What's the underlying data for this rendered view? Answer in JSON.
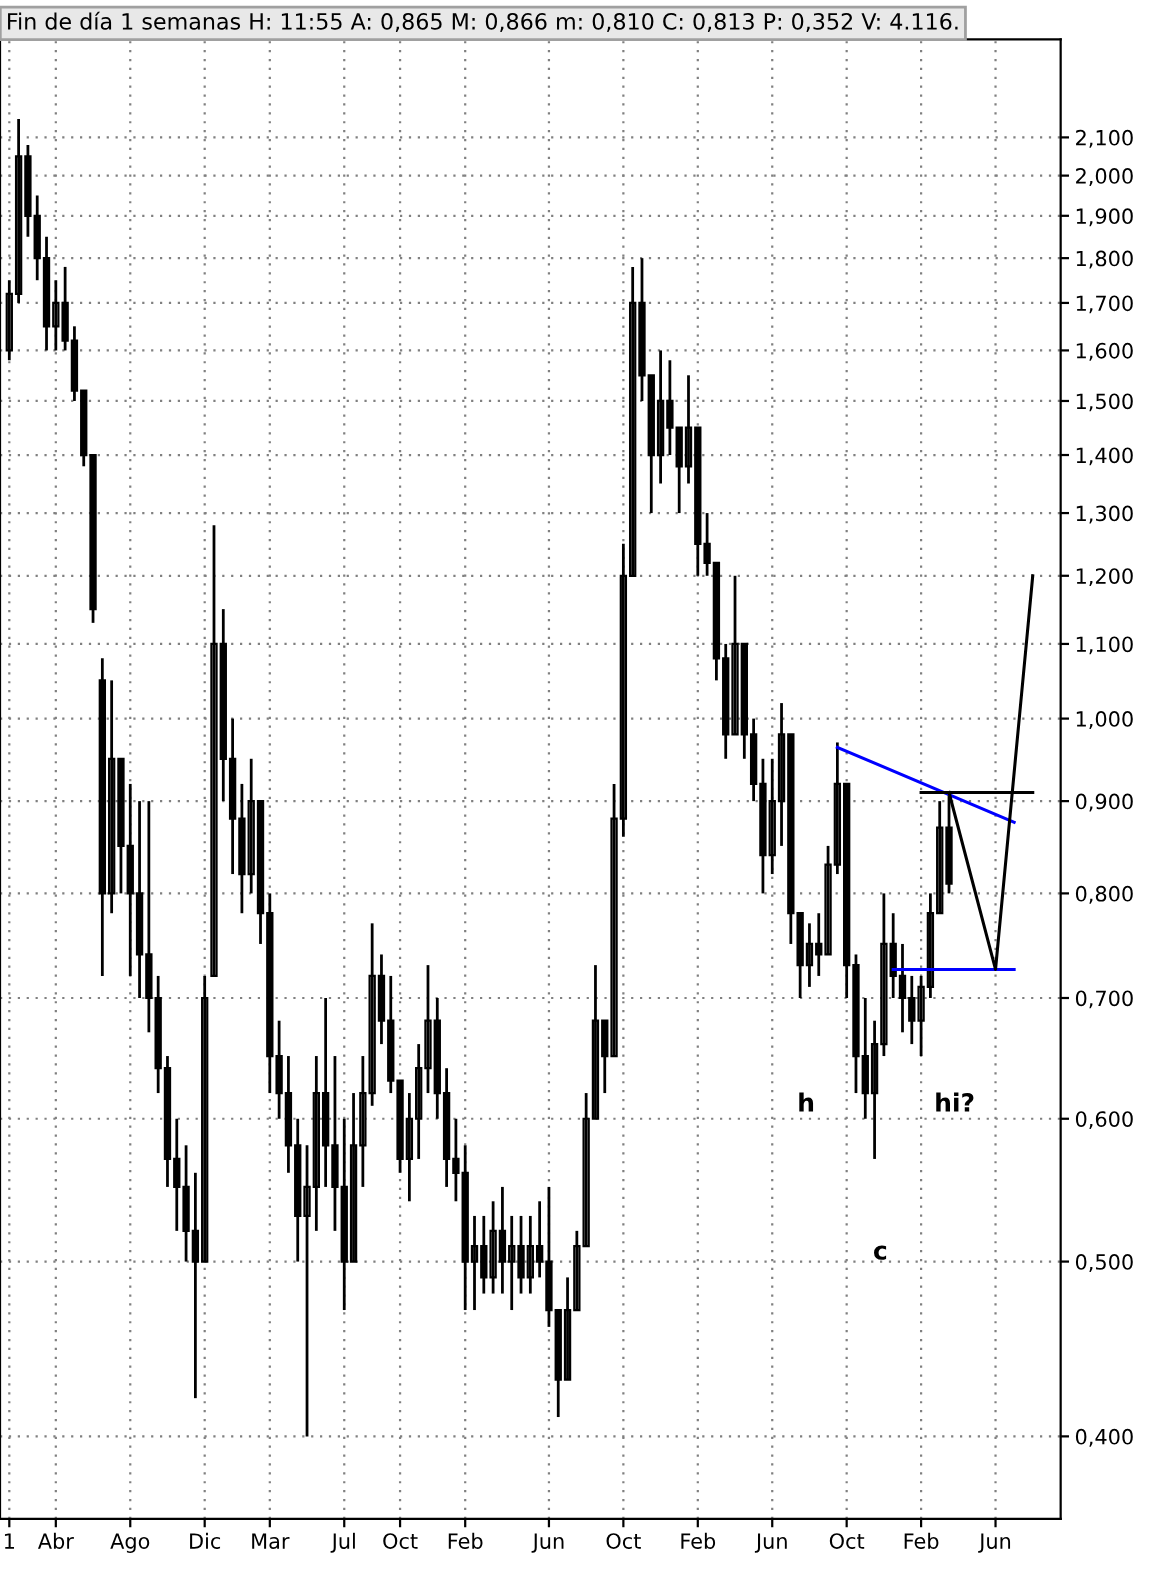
{
  "chart_data": {
    "type": "candlestick",
    "title": "Fin de día 1 semanas H: 11:55 A: 0,865 M: 0,866 m: 0,810 C: 0,813 P: 0,352 V: 4.116.",
    "color": "#000000",
    "categories": [
      "1",
      null,
      null,
      null,
      null,
      "Abr",
      null,
      null,
      null,
      null,
      null,
      null,
      null,
      "Ago",
      null,
      null,
      null,
      null,
      null,
      null,
      null,
      "Dic",
      null,
      null,
      null,
      null,
      null,
      null,
      "Mar",
      null,
      null,
      null,
      null,
      null,
      null,
      null,
      "Jul",
      null,
      null,
      null,
      null,
      null,
      "Oct",
      null,
      null,
      null,
      null,
      null,
      null,
      "Feb",
      null,
      null,
      null,
      null,
      null,
      null,
      null,
      null,
      "Jun",
      null,
      null,
      null,
      null,
      null,
      null,
      null,
      "Oct",
      null,
      null,
      null,
      null,
      null,
      null,
      null,
      "Feb",
      null,
      null,
      null,
      null,
      null,
      null,
      null,
      "Jun",
      null,
      null,
      null,
      null,
      null,
      null,
      null,
      "Oct",
      null,
      null,
      null,
      null,
      null,
      null,
      null,
      "Feb",
      null,
      null,
      null,
      null,
      null,
      null,
      null,
      "Jun",
      null,
      null,
      null,
      null,
      null
    ],
    "ohlc": [
      [
        1.6,
        1.75,
        1.58,
        1.72
      ],
      [
        1.72,
        2.15,
        1.7,
        2.05
      ],
      [
        2.05,
        2.08,
        1.85,
        1.9
      ],
      [
        1.9,
        1.95,
        1.75,
        1.8
      ],
      [
        1.8,
        1.85,
        1.6,
        1.65
      ],
      [
        1.65,
        1.75,
        1.6,
        1.7
      ],
      [
        1.7,
        1.78,
        1.6,
        1.62
      ],
      [
        1.62,
        1.65,
        1.5,
        1.52
      ],
      [
        1.52,
        1.52,
        1.38,
        1.4
      ],
      [
        1.4,
        1.4,
        1.13,
        1.15
      ],
      [
        1.05,
        1.08,
        0.72,
        0.8
      ],
      [
        0.8,
        1.05,
        0.78,
        0.95
      ],
      [
        0.95,
        0.95,
        0.8,
        0.85
      ],
      [
        0.85,
        0.92,
        0.72,
        0.8
      ],
      [
        0.8,
        0.9,
        0.7,
        0.74
      ],
      [
        0.74,
        0.9,
        0.67,
        0.7
      ],
      [
        0.7,
        0.72,
        0.62,
        0.64
      ],
      [
        0.64,
        0.65,
        0.55,
        0.57
      ],
      [
        0.57,
        0.6,
        0.52,
        0.55
      ],
      [
        0.55,
        0.58,
        0.5,
        0.52
      ],
      [
        0.52,
        0.56,
        0.42,
        0.5
      ],
      [
        0.5,
        0.72,
        0.5,
        0.7
      ],
      [
        0.72,
        1.28,
        0.72,
        1.1
      ],
      [
        1.1,
        1.15,
        0.9,
        0.95
      ],
      [
        0.95,
        1.0,
        0.82,
        0.88
      ],
      [
        0.88,
        0.92,
        0.78,
        0.82
      ],
      [
        0.82,
        0.95,
        0.8,
        0.9
      ],
      [
        0.9,
        0.9,
        0.75,
        0.78
      ],
      [
        0.78,
        0.8,
        0.62,
        0.65
      ],
      [
        0.65,
        0.68,
        0.6,
        0.62
      ],
      [
        0.62,
        0.65,
        0.56,
        0.58
      ],
      [
        0.58,
        0.6,
        0.5,
        0.53
      ],
      [
        0.53,
        0.58,
        0.4,
        0.55
      ],
      [
        0.55,
        0.65,
        0.52,
        0.62
      ],
      [
        0.62,
        0.7,
        0.55,
        0.58
      ],
      [
        0.58,
        0.65,
        0.52,
        0.55
      ],
      [
        0.55,
        0.6,
        0.47,
        0.5
      ],
      [
        0.5,
        0.62,
        0.5,
        0.58
      ],
      [
        0.58,
        0.65,
        0.55,
        0.62
      ],
      [
        0.62,
        0.77,
        0.61,
        0.72
      ],
      [
        0.72,
        0.74,
        0.66,
        0.68
      ],
      [
        0.68,
        0.72,
        0.62,
        0.63
      ],
      [
        0.63,
        0.63,
        0.56,
        0.57
      ],
      [
        0.57,
        0.62,
        0.54,
        0.6
      ],
      [
        0.6,
        0.66,
        0.57,
        0.64
      ],
      [
        0.64,
        0.73,
        0.62,
        0.68
      ],
      [
        0.68,
        0.7,
        0.6,
        0.62
      ],
      [
        0.62,
        0.64,
        0.55,
        0.57
      ],
      [
        0.57,
        0.6,
        0.54,
        0.56
      ],
      [
        0.56,
        0.58,
        0.47,
        0.5
      ],
      [
        0.5,
        0.53,
        0.47,
        0.51
      ],
      [
        0.51,
        0.53,
        0.48,
        0.49
      ],
      [
        0.49,
        0.54,
        0.48,
        0.52
      ],
      [
        0.52,
        0.55,
        0.48,
        0.5
      ],
      [
        0.5,
        0.53,
        0.47,
        0.51
      ],
      [
        0.51,
        0.53,
        0.48,
        0.49
      ],
      [
        0.49,
        0.53,
        0.48,
        0.51
      ],
      [
        0.51,
        0.54,
        0.49,
        0.5
      ],
      [
        0.5,
        0.55,
        0.46,
        0.47
      ],
      [
        0.47,
        0.47,
        0.41,
        0.43
      ],
      [
        0.43,
        0.49,
        0.43,
        0.47
      ],
      [
        0.47,
        0.52,
        0.47,
        0.51
      ],
      [
        0.51,
        0.62,
        0.51,
        0.6
      ],
      [
        0.6,
        0.73,
        0.6,
        0.68
      ],
      [
        0.68,
        0.68,
        0.62,
        0.65
      ],
      [
        0.65,
        0.92,
        0.65,
        0.88
      ],
      [
        0.88,
        1.25,
        0.86,
        1.2
      ],
      [
        1.2,
        1.78,
        1.2,
        1.7
      ],
      [
        1.7,
        1.8,
        1.5,
        1.55
      ],
      [
        1.55,
        1.55,
        1.3,
        1.4
      ],
      [
        1.4,
        1.6,
        1.35,
        1.5
      ],
      [
        1.5,
        1.58,
        1.4,
        1.45
      ],
      [
        1.45,
        1.45,
        1.3,
        1.38
      ],
      [
        1.38,
        1.55,
        1.35,
        1.45
      ],
      [
        1.45,
        1.45,
        1.2,
        1.25
      ],
      [
        1.25,
        1.3,
        1.2,
        1.22
      ],
      [
        1.22,
        1.22,
        1.05,
        1.08
      ],
      [
        1.08,
        1.1,
        0.95,
        0.98
      ],
      [
        0.98,
        1.2,
        0.98,
        1.1
      ],
      [
        1.1,
        1.1,
        0.95,
        0.98
      ],
      [
        0.98,
        1.0,
        0.9,
        0.92
      ],
      [
        0.92,
        0.95,
        0.8,
        0.84
      ],
      [
        0.84,
        0.95,
        0.82,
        0.9
      ],
      [
        0.9,
        1.02,
        0.85,
        0.98
      ],
      [
        0.98,
        0.98,
        0.75,
        0.78
      ],
      [
        0.78,
        0.78,
        0.7,
        0.73
      ],
      [
        0.73,
        0.77,
        0.71,
        0.75
      ],
      [
        0.75,
        0.78,
        0.72,
        0.74
      ],
      [
        0.74,
        0.85,
        0.74,
        0.83
      ],
      [
        0.83,
        0.97,
        0.82,
        0.92
      ],
      [
        0.92,
        0.92,
        0.7,
        0.73
      ],
      [
        0.73,
        0.74,
        0.62,
        0.65
      ],
      [
        0.65,
        0.7,
        0.6,
        0.62
      ],
      [
        0.62,
        0.68,
        0.57,
        0.66
      ],
      [
        0.66,
        0.8,
        0.65,
        0.75
      ],
      [
        0.75,
        0.78,
        0.7,
        0.72
      ],
      [
        0.72,
        0.75,
        0.67,
        0.7
      ],
      [
        0.7,
        0.72,
        0.66,
        0.68
      ],
      [
        0.68,
        0.72,
        0.65,
        0.71
      ],
      [
        0.71,
        0.8,
        0.7,
        0.78
      ],
      [
        0.78,
        0.9,
        0.78,
        0.87
      ],
      [
        0.87,
        0.91,
        0.8,
        0.81
      ],
      null,
      null,
      null,
      null,
      null,
      null,
      null,
      null,
      null,
      null
    ],
    "series": [
      {
        "type": "line",
        "color": "#0000ff",
        "values": [
          null,
          null,
          null,
          null,
          null,
          null,
          null,
          null,
          null,
          null,
          null,
          null,
          null,
          null,
          null,
          null,
          null,
          null,
          null,
          null,
          null,
          null,
          null,
          null,
          null,
          null,
          null,
          null,
          null,
          null,
          null,
          null,
          null,
          null,
          null,
          null,
          null,
          null,
          null,
          null,
          null,
          null,
          null,
          null,
          null,
          null,
          null,
          null,
          null,
          null,
          null,
          null,
          null,
          null,
          null,
          null,
          null,
          null,
          null,
          null,
          null,
          null,
          null,
          null,
          null,
          null,
          null,
          null,
          null,
          null,
          null,
          null,
          null,
          null,
          null,
          null,
          null,
          null,
          null,
          null,
          null,
          null,
          null,
          null,
          null,
          null,
          null,
          null,
          null,
          0.964,
          null,
          null,
          null,
          null,
          null,
          null,
          null,
          null,
          null,
          null,
          null,
          null,
          null,
          null,
          null,
          null,
          null,
          null,
          0.876,
          null,
          null,
          null
        ]
      },
      {
        "type": "line",
        "color": "#0000ff",
        "values": [
          null,
          null,
          null,
          null,
          null,
          null,
          null,
          null,
          null,
          null,
          null,
          null,
          null,
          null,
          null,
          null,
          null,
          null,
          null,
          null,
          null,
          null,
          null,
          null,
          null,
          null,
          null,
          null,
          null,
          null,
          null,
          null,
          null,
          null,
          null,
          null,
          null,
          null,
          null,
          null,
          null,
          null,
          null,
          null,
          null,
          null,
          null,
          null,
          null,
          null,
          null,
          null,
          null,
          null,
          null,
          null,
          null,
          null,
          null,
          null,
          null,
          null,
          null,
          null,
          null,
          null,
          null,
          null,
          null,
          null,
          null,
          null,
          null,
          null,
          null,
          null,
          null,
          null,
          null,
          null,
          null,
          null,
          null,
          null,
          null,
          null,
          null,
          null,
          null,
          null,
          null,
          null,
          null,
          null,
          null,
          0.726,
          null,
          null,
          null,
          null,
          null,
          null,
          null,
          null,
          null,
          null,
          null,
          null,
          0.726,
          null,
          null,
          null
        ]
      },
      {
        "type": "line",
        "color": "#000000",
        "values": [
          null,
          null,
          null,
          null,
          null,
          null,
          null,
          null,
          null,
          null,
          null,
          null,
          null,
          null,
          null,
          null,
          null,
          null,
          null,
          null,
          null,
          null,
          null,
          null,
          null,
          null,
          null,
          null,
          null,
          null,
          null,
          null,
          null,
          null,
          null,
          null,
          null,
          null,
          null,
          null,
          null,
          null,
          null,
          null,
          null,
          null,
          null,
          null,
          null,
          null,
          null,
          null,
          null,
          null,
          null,
          null,
          null,
          null,
          null,
          null,
          null,
          null,
          null,
          null,
          null,
          null,
          null,
          null,
          null,
          null,
          null,
          null,
          null,
          null,
          null,
          null,
          null,
          null,
          null,
          null,
          null,
          null,
          null,
          null,
          null,
          null,
          null,
          null,
          null,
          null,
          null,
          null,
          null,
          null,
          null,
          null,
          null,
          null,
          0.91,
          null,
          null,
          null,
          null,
          null,
          null,
          null,
          null,
          null,
          null,
          null,
          0.91,
          null
        ]
      },
      {
        "type": "line",
        "color": "#000000",
        "values": [
          null,
          null,
          null,
          null,
          null,
          null,
          null,
          null,
          null,
          null,
          null,
          null,
          null,
          null,
          null,
          null,
          null,
          null,
          null,
          null,
          null,
          null,
          null,
          null,
          null,
          null,
          null,
          null,
          null,
          null,
          null,
          null,
          null,
          null,
          null,
          null,
          null,
          null,
          null,
          null,
          null,
          null,
          null,
          null,
          null,
          null,
          null,
          null,
          null,
          null,
          null,
          null,
          null,
          null,
          null,
          null,
          null,
          null,
          null,
          null,
          null,
          null,
          null,
          null,
          null,
          null,
          null,
          null,
          null,
          null,
          null,
          null,
          null,
          null,
          null,
          null,
          null,
          null,
          null,
          null,
          null,
          null,
          null,
          null,
          null,
          null,
          null,
          null,
          null,
          null,
          null,
          null,
          null,
          null,
          null,
          null,
          null,
          null,
          null,
          null,
          null,
          0.91,
          null,
          null,
          null,
          null,
          0.726,
          null,
          null,
          null,
          1.2,
          null
        ]
      }
    ],
    "annotations": [
      "h",
      "c",
      "hi?"
    ],
    "log": "y",
    "ylim": [
      0.36,
      2.38
    ],
    "yticks": [
      {
        "value": 0.4,
        "label": "0,400"
      },
      {
        "value": 0.5,
        "label": "0,500"
      },
      {
        "value": 0.6,
        "label": "0,600"
      },
      {
        "value": 0.7,
        "label": "0,700"
      },
      {
        "value": 0.8,
        "label": "0,800"
      },
      {
        "value": 0.9,
        "label": "0,900"
      },
      {
        "value": 1.0,
        "label": "1,000"
      },
      {
        "value": 1.1,
        "label": "1,100"
      },
      {
        "value": 1.2,
        "label": "1,200"
      },
      {
        "value": 1.3,
        "label": "1,300"
      },
      {
        "value": 1.4,
        "label": "1,400"
      },
      {
        "value": 1.5,
        "label": "1,500"
      },
      {
        "value": 1.6,
        "label": "1,600"
      },
      {
        "value": 1.7,
        "label": "1,700"
      },
      {
        "value": 1.8,
        "label": "1,800"
      },
      {
        "value": 1.9,
        "label": "1,900"
      },
      {
        "value": 2.0,
        "label": "2,000"
      },
      {
        "value": 2.1,
        "label": "2,100"
      }
    ],
    "grid": true,
    "marker": "none"
  }
}
